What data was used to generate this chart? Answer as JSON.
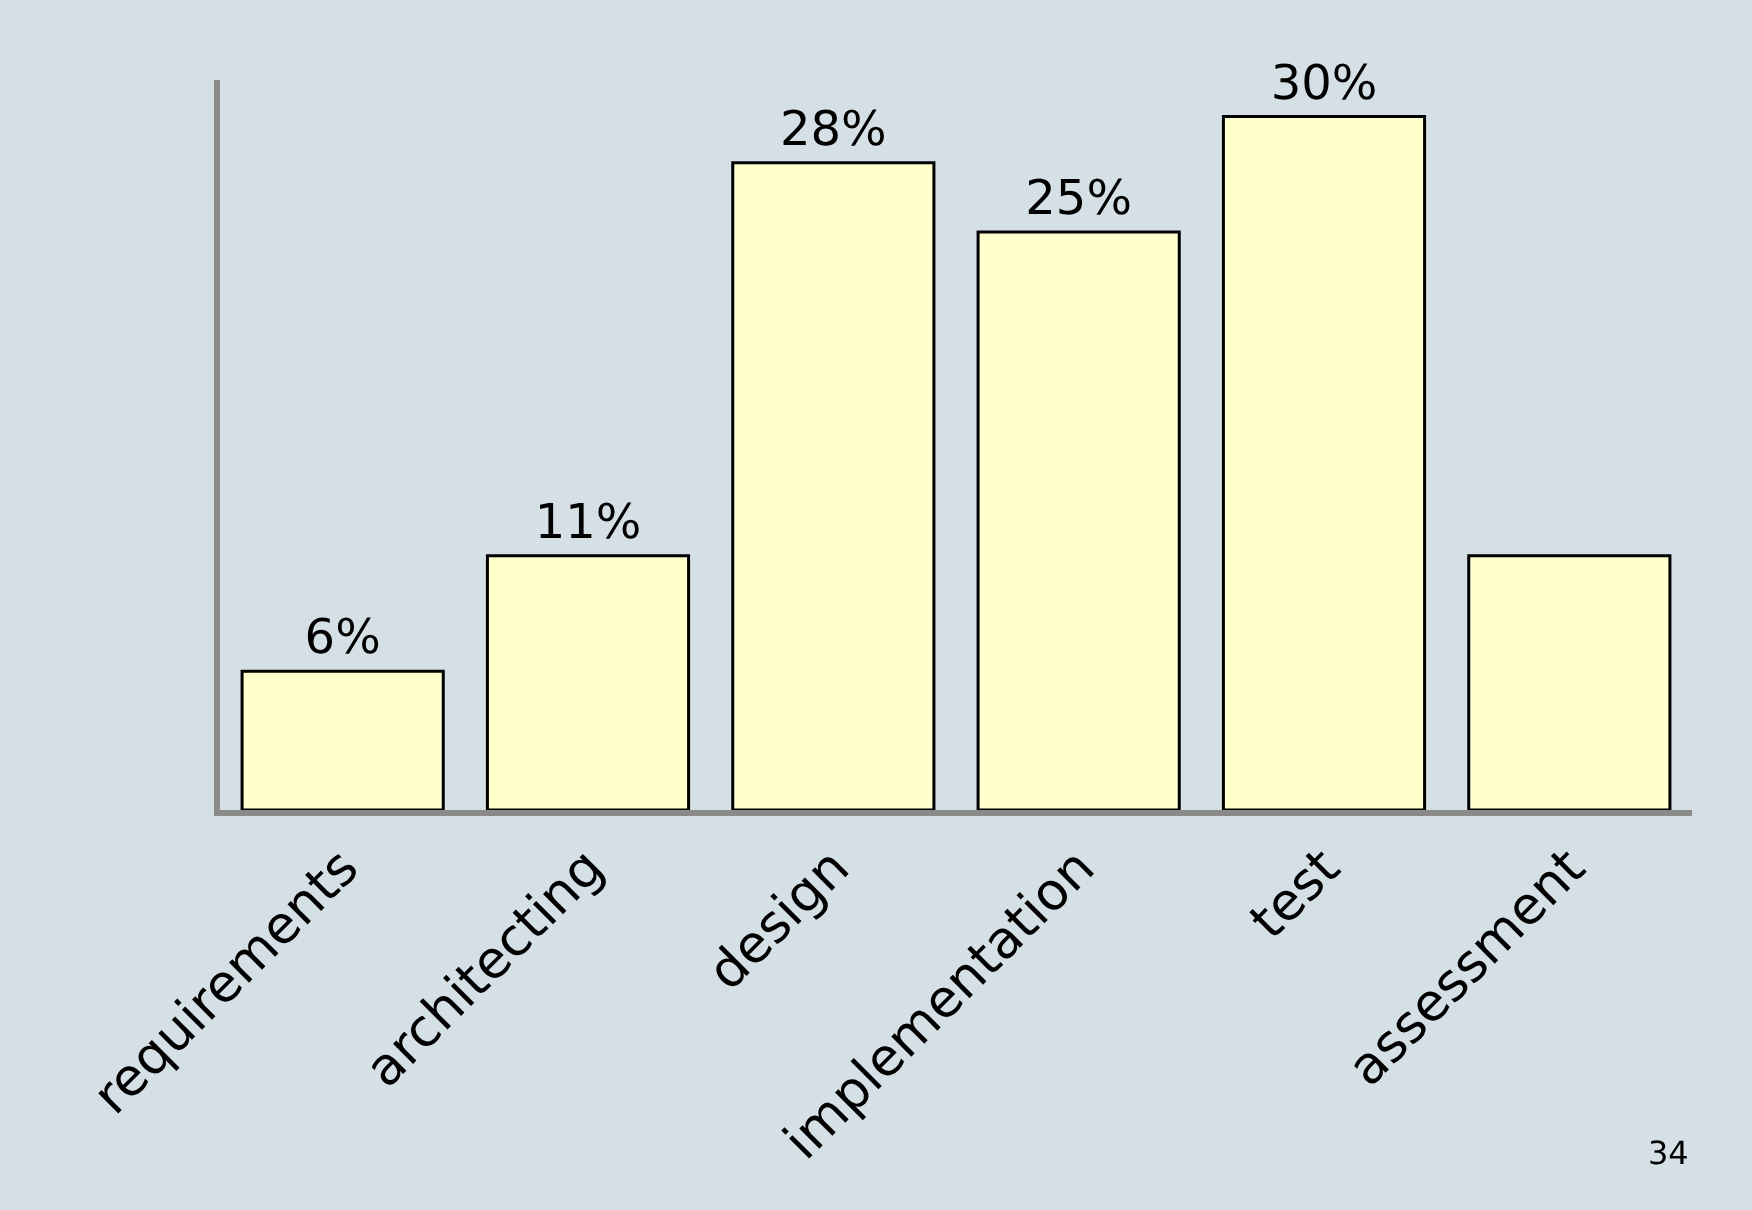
{
  "chart_data": {
    "type": "bar",
    "categories": [
      "requirements",
      "architecting",
      "design",
      "implementation",
      "test",
      "assessment"
    ],
    "values": [
      6,
      11,
      28,
      25,
      30,
      11
    ],
    "value_labels": [
      "6%",
      "11%",
      "28%",
      "25%",
      "30%",
      null
    ],
    "color": "#ffffcc",
    "relative": false,
    "annotations": [
      "34"
    ]
  }
}
